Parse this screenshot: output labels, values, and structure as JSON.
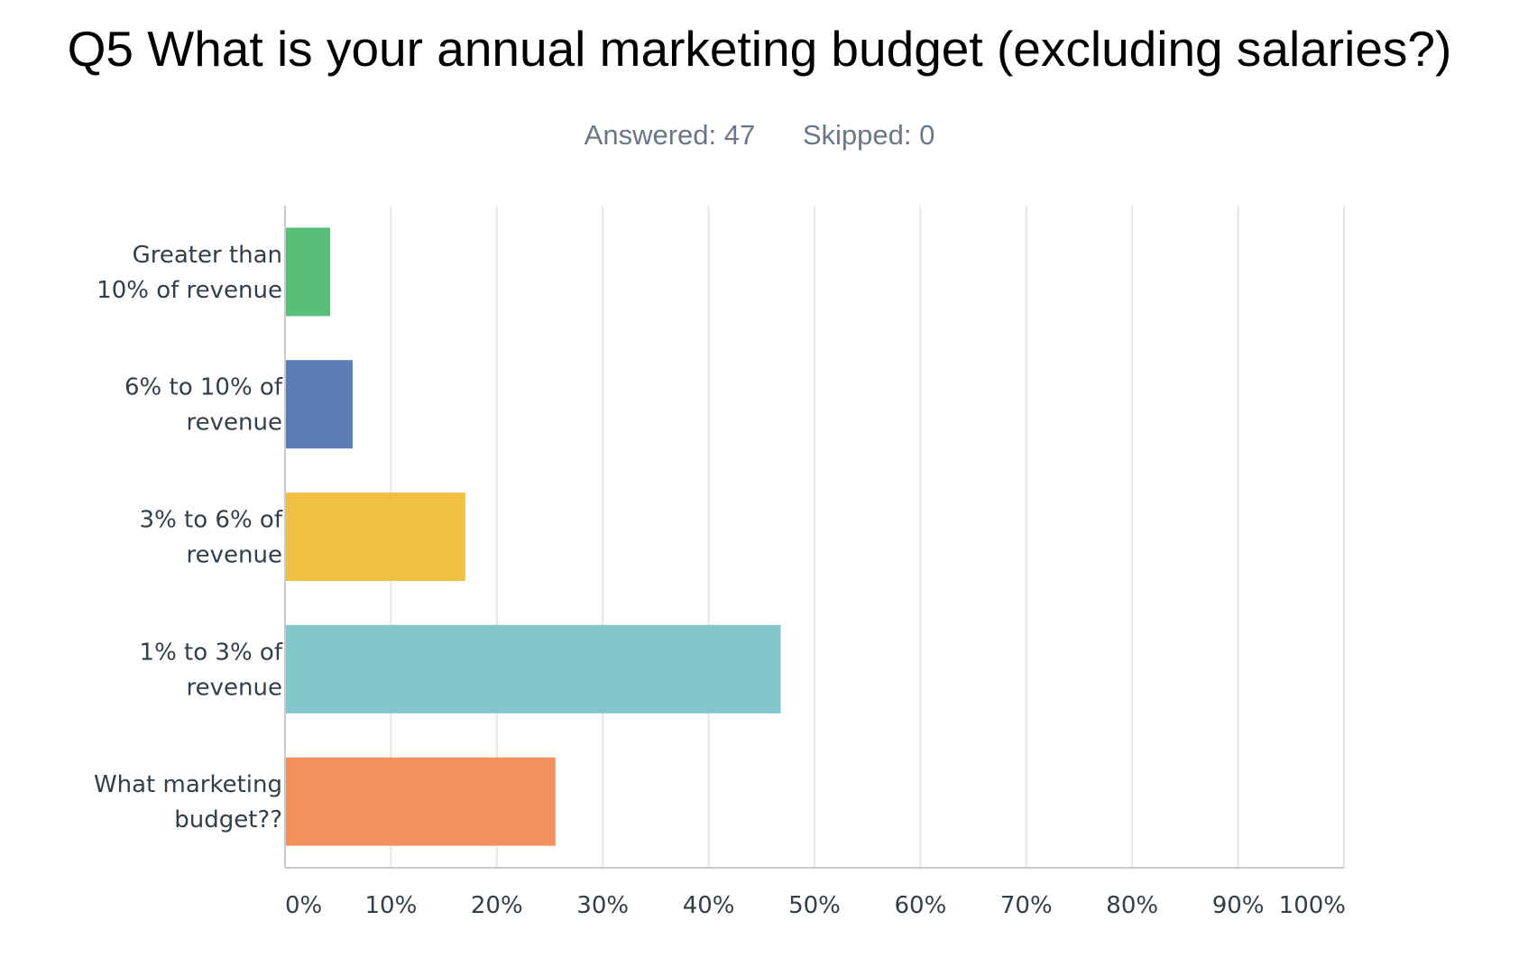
{
  "header": {
    "title": "Q5 What is your annual marketing budget (excluding salaries?)",
    "answered_label": "Answered: 47",
    "skipped_label": "Skipped: 0"
  },
  "chart_data": {
    "type": "bar",
    "orientation": "horizontal",
    "title": "Q5 What is your annual marketing budget (excluding salaries?)",
    "categories": [
      [
        "Greater than",
        "10% of revenue"
      ],
      [
        "6% to 10% of",
        "revenue"
      ],
      [
        "3% to 6% of",
        "revenue"
      ],
      [
        "1% to 3% of",
        "revenue"
      ],
      [
        "What marketing",
        "budget??"
      ]
    ],
    "values": [
      4.26,
      6.38,
      17.02,
      46.81,
      25.53
    ],
    "colors": [
      "#57bd77",
      "#5b7db4",
      "#f0c043",
      "#83c5ca",
      "#f1915e"
    ],
    "xlim": [
      0,
      100
    ],
    "xticks": [
      "0%",
      "10%",
      "20%",
      "30%",
      "40%",
      "50%",
      "60%",
      "70%",
      "80%",
      "90%",
      "100%"
    ],
    "grid": true,
    "legend": "none",
    "xlabel": "",
    "ylabel": ""
  }
}
